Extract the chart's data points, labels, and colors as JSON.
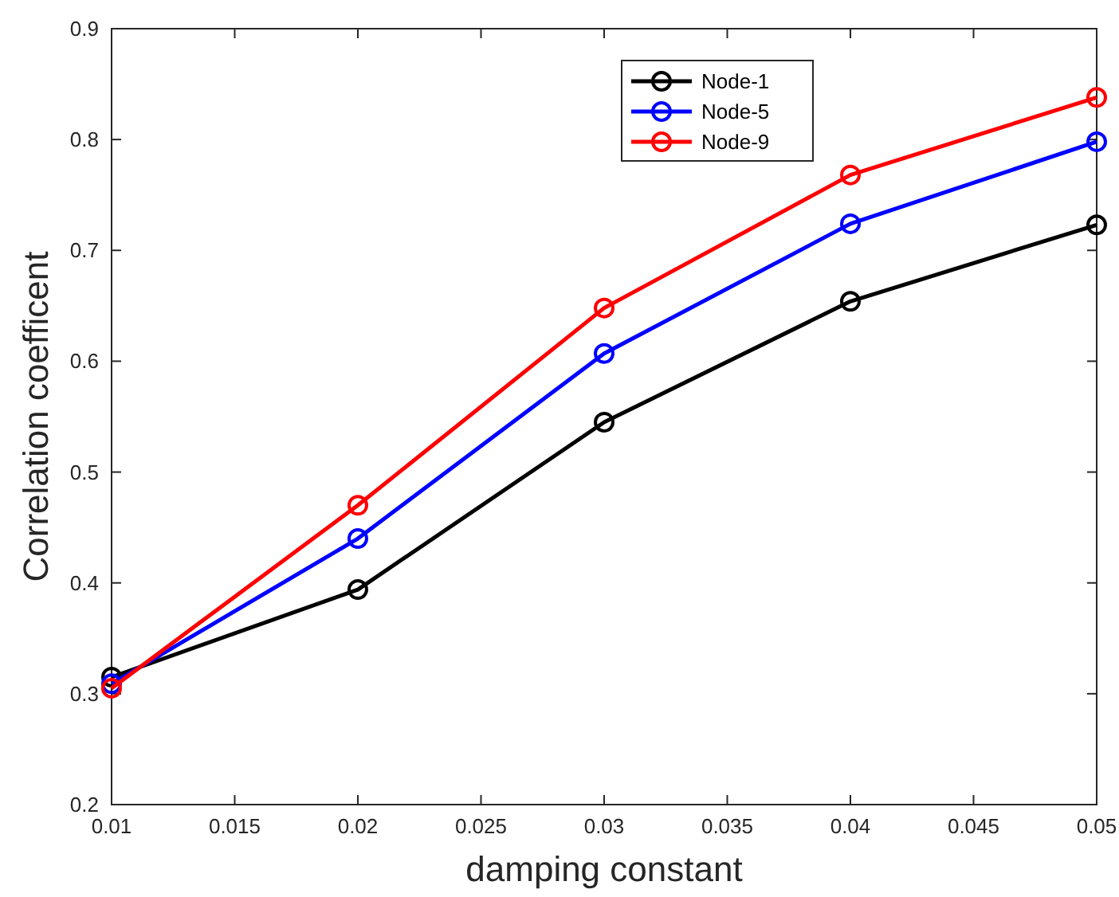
{
  "chart_data": {
    "type": "line",
    "xlabel": "damping constant",
    "ylabel": "Correlation coefficent",
    "x": [
      0.01,
      0.02,
      0.03,
      0.04,
      0.05
    ],
    "series": [
      {
        "name": "Node-1",
        "color": "#000000",
        "values": [
          0.315,
          0.394,
          0.545,
          0.654,
          0.723
        ]
      },
      {
        "name": "Node-5",
        "color": "#0000ff",
        "values": [
          0.309,
          0.44,
          0.607,
          0.724,
          0.798
        ]
      },
      {
        "name": "Node-9",
        "color": "#ff0000",
        "values": [
          0.305,
          0.47,
          0.648,
          0.768,
          0.838
        ]
      }
    ],
    "xlim": [
      0.01,
      0.05
    ],
    "xticks": [
      0.01,
      0.015,
      0.02,
      0.025,
      0.03,
      0.035,
      0.04,
      0.045,
      0.05
    ],
    "ylim": [
      0.2,
      0.9
    ],
    "yticks": [
      0.2,
      0.3,
      0.4,
      0.5,
      0.6,
      0.7,
      0.8,
      0.9
    ],
    "grid": false,
    "legend": "top right",
    "marker": "circle",
    "line_style": "solid"
  }
}
